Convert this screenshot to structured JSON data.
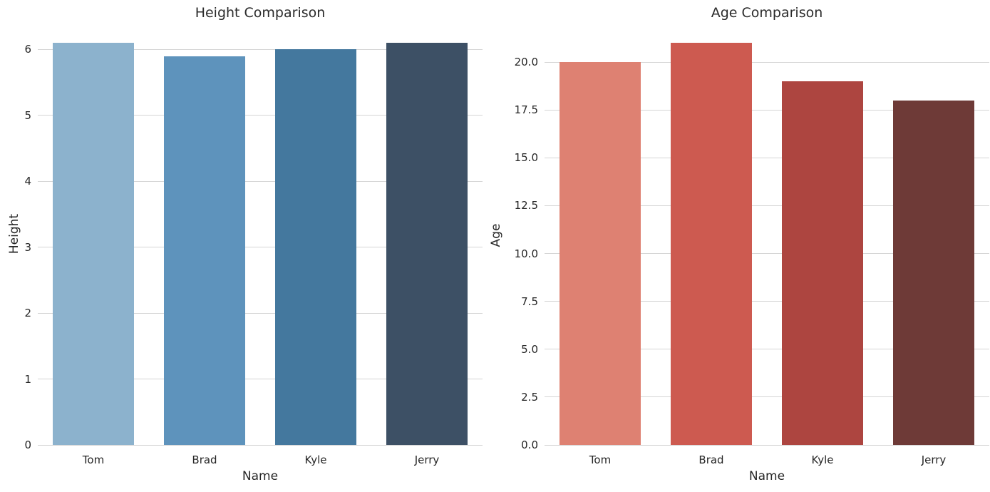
{
  "figure": {
    "background_color": "#ffffff",
    "text_color": "#262626",
    "grid_color": "#d5d5d5"
  },
  "chart_data": [
    {
      "type": "bar",
      "title": "Height Comparison",
      "xlabel": "Name",
      "ylabel": "Height",
      "categories": [
        "Tom",
        "Brad",
        "Kyle",
        "Jerry"
      ],
      "values": [
        6.1,
        5.9,
        6.0,
        6.1
      ],
      "bar_colors": [
        "#8cb2cd",
        "#5e93bc",
        "#44789e",
        "#3d5065"
      ],
      "yticks": [
        0,
        1,
        2,
        3,
        4,
        5,
        6
      ],
      "ytick_labels": [
        "0",
        "1",
        "2",
        "3",
        "4",
        "5",
        "6"
      ],
      "ylim": [
        0,
        6.405
      ],
      "grid": "horizontal",
      "legend": "none"
    },
    {
      "type": "bar",
      "title": "Age Comparison",
      "xlabel": "Name",
      "ylabel": "Age",
      "categories": [
        "Tom",
        "Brad",
        "Kyle",
        "Jerry"
      ],
      "values": [
        20,
        21,
        19,
        18
      ],
      "bar_colors": [
        "#de8172",
        "#cd5a50",
        "#ad4540",
        "#6e3a37"
      ],
      "yticks": [
        0,
        2.5,
        5,
        7.5,
        10,
        12.5,
        15,
        17.5,
        20
      ],
      "ytick_labels": [
        "0.0",
        "2.5",
        "5.0",
        "7.5",
        "10.0",
        "12.5",
        "15.0",
        "17.5",
        "20.0"
      ],
      "ylim": [
        0,
        22.05
      ],
      "grid": "horizontal",
      "legend": "none"
    }
  ]
}
